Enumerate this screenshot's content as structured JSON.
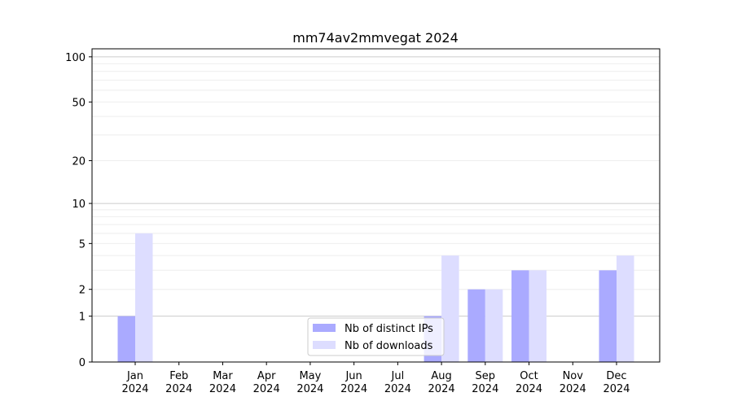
{
  "chart_data": {
    "type": "bar",
    "title": "mm74av2mmvegat 2024",
    "xlabel": "",
    "ylabel": "",
    "yscale": "symlog (log10(1+y))",
    "ylim": [
      0,
      113
    ],
    "yticks": [
      0,
      1,
      2,
      5,
      10,
      20,
      50,
      100
    ],
    "grid": true,
    "legend_placement": "lower-center",
    "categories": [
      "Jan\n2024",
      "Feb\n2024",
      "Mar\n2024",
      "Apr\n2024",
      "May\n2024",
      "Jun\n2024",
      "Jul\n2024",
      "Aug\n2024",
      "Sep\n2024",
      "Oct\n2024",
      "Nov\n2024",
      "Dec\n2024"
    ],
    "series": [
      {
        "name": "Nb of distinct IPs",
        "color": "#aaaaff",
        "values": [
          1,
          0,
          0,
          0,
          0,
          0,
          0,
          1,
          2,
          3,
          0,
          3
        ]
      },
      {
        "name": "Nb of downloads",
        "color": "#ddddff",
        "values": [
          6,
          0,
          0,
          0,
          0,
          0,
          0,
          4,
          2,
          3,
          0,
          4
        ]
      }
    ]
  }
}
